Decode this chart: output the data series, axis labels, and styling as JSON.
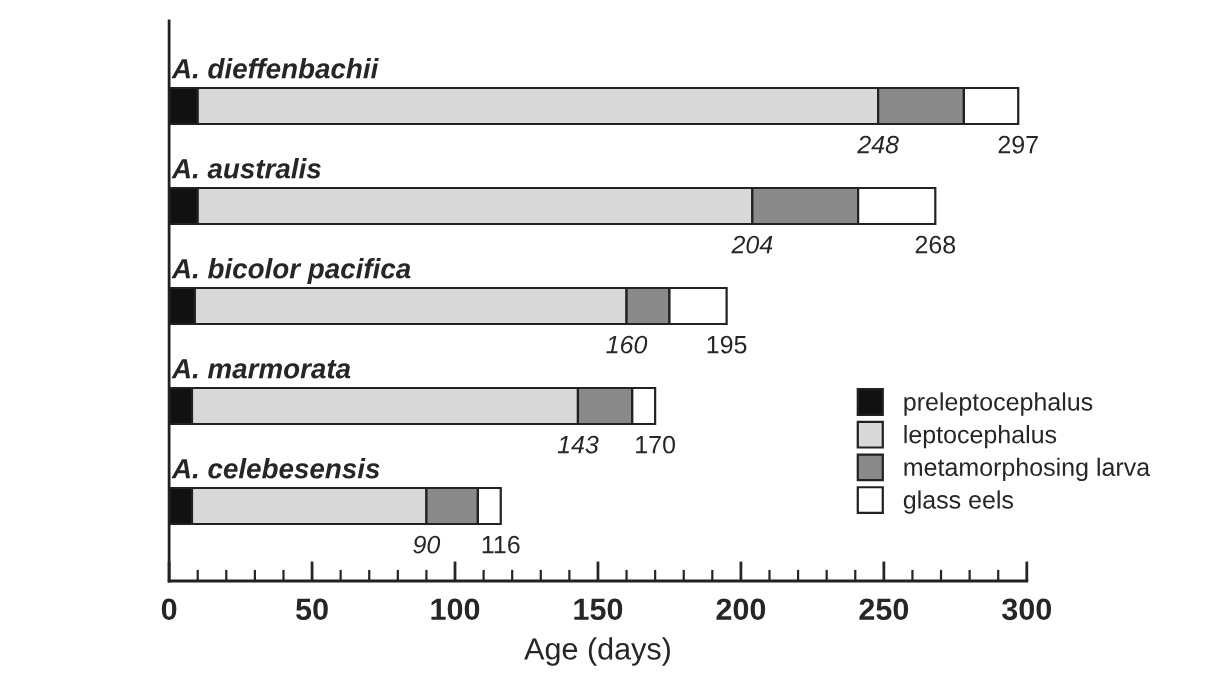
{
  "chart_data": {
    "type": "bar",
    "orientation": "horizontal",
    "stacked": true,
    "xlabel": "Age (days)",
    "categories": [
      "A. dieffenbachii",
      "A. australis",
      "A. bicolor pacifica",
      "A. marmorata",
      "A. celebesensis"
    ],
    "series": [
      {
        "name": "preleptocephalus",
        "color": "#111111",
        "values": [
          10,
          10,
          9,
          8,
          8
        ]
      },
      {
        "name": "leptocephalus",
        "color": "#d9d9d9",
        "values": [
          238,
          194,
          151,
          135,
          82
        ]
      },
      {
        "name": "metamorphosing larva",
        "color": "#8a8a8a",
        "values": [
          30,
          37,
          15,
          19,
          18
        ]
      },
      {
        "name": "glass eels",
        "color": "#ffffff",
        "values": [
          19,
          27,
          20,
          8,
          8
        ]
      }
    ],
    "annotations": [
      {
        "text": "248",
        "x": 248,
        "y": "A. dieffenbachii"
      },
      {
        "text": "297",
        "x": 297,
        "y": "A. dieffenbachii"
      },
      {
        "text": "204",
        "x": 204,
        "y": "A. australis"
      },
      {
        "text": "268",
        "x": 268,
        "y": "A. australis"
      },
      {
        "text": "160",
        "x": 160,
        "y": "A. bicolor pacifica"
      },
      {
        "text": "195",
        "x": 195,
        "y": "A. bicolor pacifica"
      },
      {
        "text": "143",
        "x": 143,
        "y": "A. marmorata"
      },
      {
        "text": "170",
        "x": 170,
        "y": "A. marmorata"
      },
      {
        "text": "90",
        "x": 90,
        "y": "A. celebesensis"
      },
      {
        "text": "116",
        "x": 116,
        "y": "A. celebesensis"
      }
    ],
    "xlim": [
      0,
      300
    ],
    "xticks": [
      0,
      {
        "value": 10,
        "label": null
      },
      {
        "value": 20,
        "label": null
      },
      {
        "value": 30,
        "label": null
      },
      {
        "value": 40,
        "label": null
      },
      50,
      {
        "value": 60,
        "label": null
      },
      {
        "value": 70,
        "label": null
      },
      {
        "value": 80,
        "label": null
      },
      {
        "value": 90,
        "label": null
      },
      100,
      {
        "value": 110,
        "label": null
      },
      {
        "value": 120,
        "label": null
      },
      {
        "value": 130,
        "label": null
      },
      {
        "value": 140,
        "label": null
      },
      150,
      {
        "value": 160,
        "label": null
      },
      {
        "value": 170,
        "label": null
      },
      {
        "value": 180,
        "label": null
      },
      {
        "value": 190,
        "label": null
      },
      200,
      {
        "value": 210,
        "label": null
      },
      {
        "value": 220,
        "label": null
      },
      {
        "value": 230,
        "label": null
      },
      {
        "value": 240,
        "label": null
      },
      250,
      {
        "value": 260,
        "label": null
      },
      {
        "value": 270,
        "label": null
      },
      {
        "value": 280,
        "label": null
      },
      {
        "value": 290,
        "label": null
      },
      300
    ],
    "legend": "bottom right",
    "grid": false,
    "tick_labels": "x"
  }
}
